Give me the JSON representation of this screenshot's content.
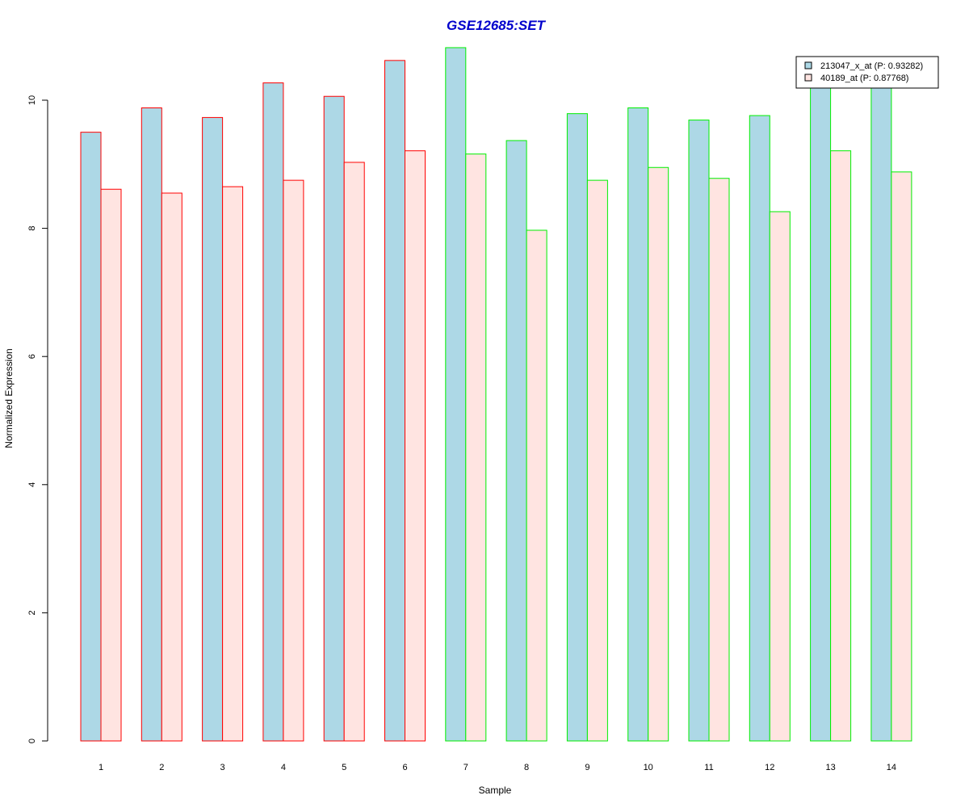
{
  "chart_data": {
    "type": "bar",
    "title": "GSE12685:SET",
    "xlabel": "Sample",
    "ylabel": "Normalized Expression",
    "categories": [
      "1",
      "2",
      "3",
      "4",
      "5",
      "6",
      "7",
      "8",
      "9",
      "10",
      "11",
      "12",
      "13",
      "14"
    ],
    "series": [
      {
        "name": "213047_x_at (P: 0.93282)",
        "fill": "#add8e6",
        "values": [
          9.5,
          9.88,
          9.73,
          10.27,
          10.06,
          10.62,
          10.82,
          9.37,
          9.79,
          9.88,
          9.69,
          9.76,
          10.4,
          10.5
        ]
      },
      {
        "name": "40189_at (P: 0.87768)",
        "fill": "#ffe4e1",
        "values": [
          8.61,
          8.55,
          8.65,
          8.75,
          9.03,
          9.21,
          9.16,
          7.97,
          8.75,
          8.95,
          8.78,
          8.26,
          9.21,
          8.88
        ]
      }
    ],
    "group_border_colors": [
      "#ff0000",
      "#ff0000",
      "#ff0000",
      "#ff0000",
      "#ff0000",
      "#ff0000",
      "#00ee00",
      "#00ee00",
      "#00ee00",
      "#00ee00",
      "#00ee00",
      "#00ee00",
      "#00ee00",
      "#00ee00"
    ],
    "y_ticks": [
      0,
      2,
      4,
      6,
      8,
      10
    ],
    "ylim": [
      0,
      10.9
    ],
    "legend_position": "top-right",
    "grid": false,
    "title_color": "#0000cc"
  }
}
